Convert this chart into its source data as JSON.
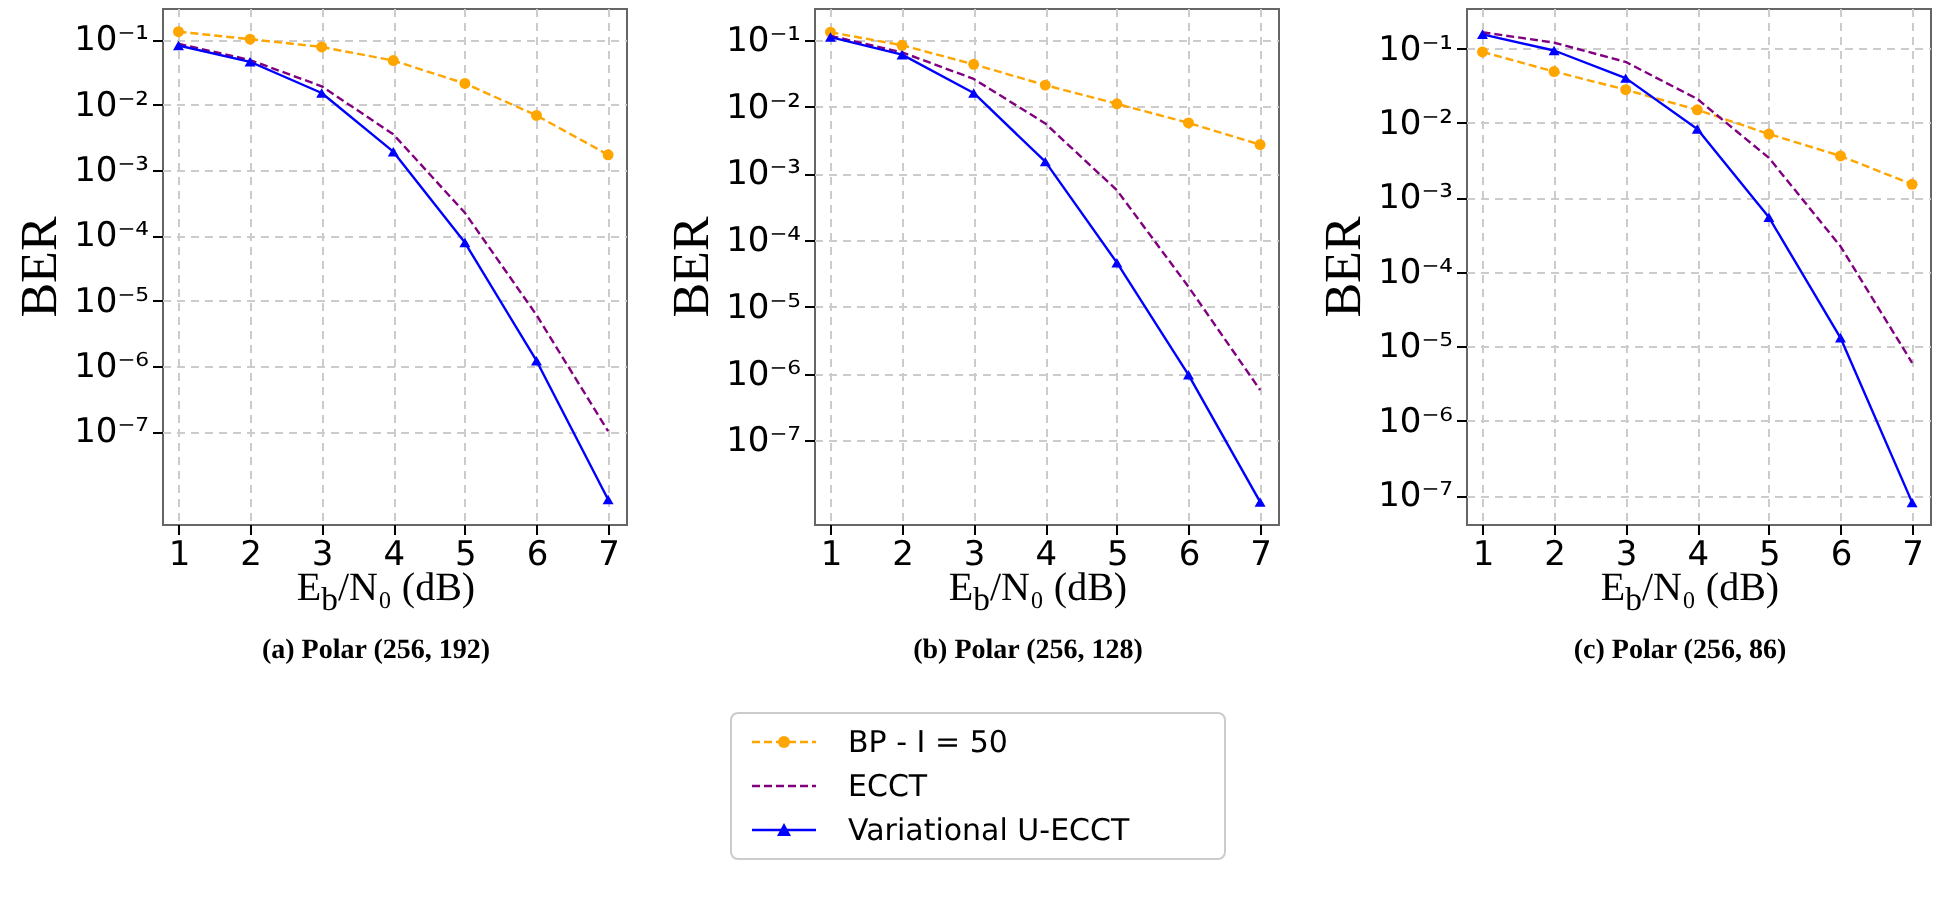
{
  "chart_data": [
    {
      "type": "line",
      "title": "(a) Polar (256, 192)",
      "xlabel": "E$_{b}$/N₀ (dB)",
      "ylabel": "BER",
      "x": [
        1,
        2,
        3,
        4,
        5,
        6,
        7
      ],
      "xlim": [
        0.77,
        7.25
      ],
      "xticks": [
        1,
        2,
        3,
        4,
        5,
        6,
        7
      ],
      "ylim": [
        3.8e-09,
        0.3
      ],
      "yticks": [
        {
          "value": 1e-07,
          "label": "10⁻⁷"
        },
        {
          "value": 1e-06,
          "label": "10⁻⁶"
        },
        {
          "value": 1e-05,
          "label": "10⁻⁵"
        },
        {
          "value": 0.0001,
          "label": "10⁻⁴"
        },
        {
          "value": 0.001,
          "label": "10⁻³"
        },
        {
          "value": 0.01,
          "label": "10⁻²"
        },
        {
          "value": 0.1,
          "label": "10⁻¹"
        }
      ],
      "log": true,
      "grid": true,
      "legend": "bottom",
      "series": [
        {
          "name": "BP - I = 50",
          "color": "#ffa500",
          "marker": "circle",
          "line_style": "dashed",
          "values": [
            0.13,
            0.1,
            0.076,
            0.047,
            0.021,
            0.0068,
            0.0017
          ]
        },
        {
          "name": "ECCT",
          "color": "#800080",
          "marker": "none",
          "line_style": "dashed",
          "values": [
            0.085,
            0.048,
            0.019,
            0.0035,
            0.00022,
            6e-06,
            1e-07
          ]
        },
        {
          "name": "Variational U-ECCT",
          "color": "#0000ff",
          "marker": "triangle",
          "line_style": "solid",
          "values": [
            0.08,
            0.045,
            0.015,
            0.0019,
            7.7e-05,
            1.2e-06,
            9e-09
          ]
        }
      ]
    },
    {
      "type": "line",
      "title": "(b) Polar (256, 128)",
      "xlabel": "E$_{b}$/N₀ (dB)",
      "ylabel": "BER",
      "x": [
        1,
        2,
        3,
        4,
        5,
        6,
        7
      ],
      "xlim": [
        0.77,
        7.25
      ],
      "xticks": [
        1,
        2,
        3,
        4,
        5,
        6,
        7
      ],
      "ylim": [
        5.6e-09,
        0.3
      ],
      "yticks": [
        {
          "value": 1e-07,
          "label": "10⁻⁷"
        },
        {
          "value": 1e-06,
          "label": "10⁻⁶"
        },
        {
          "value": 1e-05,
          "label": "10⁻⁵"
        },
        {
          "value": 0.0001,
          "label": "10⁻⁴"
        },
        {
          "value": 0.001,
          "label": "10⁻³"
        },
        {
          "value": 0.01,
          "label": "10⁻²"
        },
        {
          "value": 0.1,
          "label": "10⁻¹"
        }
      ],
      "log": true,
      "grid": true,
      "legend": "bottom",
      "series": [
        {
          "name": "BP - I = 50",
          "color": "#ffa500",
          "marker": "circle",
          "line_style": "dashed",
          "values": [
            0.13,
            0.083,
            0.043,
            0.021,
            0.011,
            0.0057,
            0.0027
          ]
        },
        {
          "name": "ECCT",
          "color": "#800080",
          "marker": "none",
          "line_style": "dashed",
          "values": [
            0.115,
            0.065,
            0.026,
            0.0056,
            0.00056,
            2e-05,
            5.7e-07
          ]
        },
        {
          "name": "Variational U-ECCT",
          "color": "#0000ff",
          "marker": "triangle",
          "line_style": "solid",
          "values": [
            0.11,
            0.06,
            0.016,
            0.0015,
            4.6e-05,
            9.6e-07,
            1.2e-08
          ]
        }
      ]
    },
    {
      "type": "line",
      "title": "(c) Polar (256, 86)",
      "xlabel": "E$_{b}$/N₀ (dB)",
      "ylabel": "BER",
      "x": [
        1,
        2,
        3,
        4,
        5,
        6,
        7
      ],
      "xlim": [
        0.77,
        7.25
      ],
      "xticks": [
        1,
        2,
        3,
        4,
        5,
        6,
        7
      ],
      "ylim": [
        4.1e-08,
        0.35
      ],
      "yticks": [
        {
          "value": 1e-07,
          "label": "10⁻⁷"
        },
        {
          "value": 1e-06,
          "label": "10⁻⁶"
        },
        {
          "value": 1e-05,
          "label": "10⁻⁵"
        },
        {
          "value": 0.0001,
          "label": "10⁻⁴"
        },
        {
          "value": 0.001,
          "label": "10⁻³"
        },
        {
          "value": 0.01,
          "label": "10⁻²"
        },
        {
          "value": 0.1,
          "label": "10⁻¹"
        }
      ],
      "log": true,
      "grid": true,
      "legend": "bottom",
      "series": [
        {
          "name": "BP - I = 50",
          "color": "#ffa500",
          "marker": "circle",
          "line_style": "dashed",
          "values": [
            0.09,
            0.049,
            0.028,
            0.015,
            0.0071,
            0.0036,
            0.0015
          ]
        },
        {
          "name": "ECCT",
          "color": "#800080",
          "marker": "none",
          "line_style": "dashed",
          "values": [
            0.165,
            0.12,
            0.066,
            0.021,
            0.0034,
            0.00022,
            6e-06
          ]
        },
        {
          "name": "Variational U-ECCT",
          "color": "#0000ff",
          "marker": "triangle",
          "line_style": "solid",
          "values": [
            0.155,
            0.094,
            0.04,
            0.0083,
            0.00054,
            1.3e-05,
            8e-08
          ]
        }
      ]
    }
  ]
}
